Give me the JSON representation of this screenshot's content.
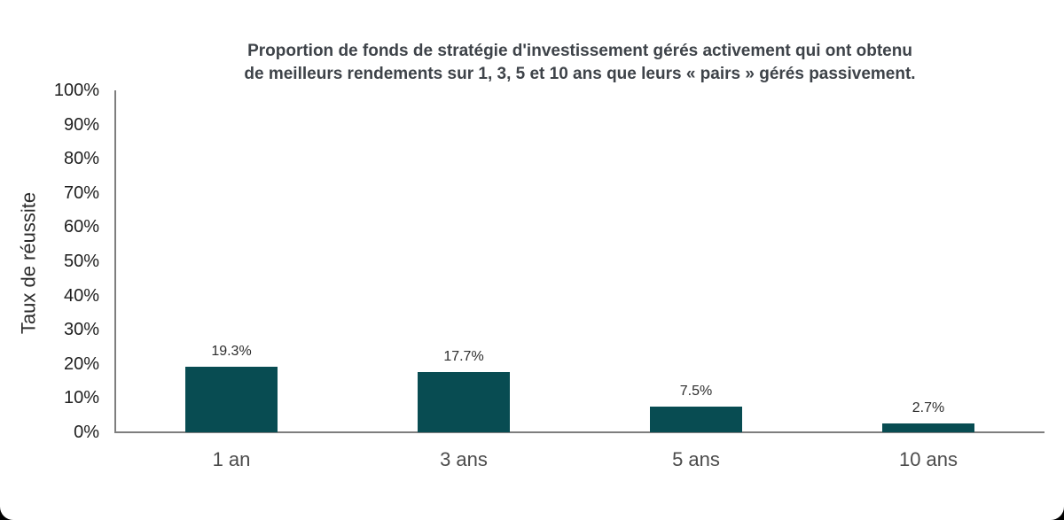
{
  "page": {
    "card_background": "#ffffff",
    "behind_card_background": "#000000"
  },
  "chart_data": {
    "type": "bar",
    "title": "Proportion de fonds de stratégie d'investissement gérés activement qui ont obtenu de meilleurs rendements sur 1, 3, 5 et 10 ans que leurs « pairs » gérés passivement.",
    "title_lines": [
      "Proportion de fonds de stratégie d'investissement gérés activement qui ont obtenu",
      "de meilleurs rendements sur 1, 3, 5 et 10 ans que leurs « pairs » gérés passivement."
    ],
    "xlabel": "",
    "ylabel": "Taux de réussite",
    "categories": [
      "1 an",
      "3 ans",
      "5 ans",
      "10 ans"
    ],
    "values": [
      19.3,
      17.7,
      7.5,
      2.7
    ],
    "value_labels": [
      "19.3%",
      "17.7%",
      "7.5%",
      "2.7%"
    ],
    "ylim": [
      0,
      100
    ],
    "ytick_step": 10,
    "ytick_labels": [
      "0%",
      "10%",
      "20%",
      "30%",
      "40%",
      "50%",
      "60%",
      "70%",
      "80%",
      "90%",
      "100%"
    ],
    "grid": false,
    "legend_position": "none",
    "bar_color": "#084c52",
    "axis_color": "#7e7e7e",
    "title_color": "#3e4349",
    "tick_label_color": "#1e1e1e",
    "category_label_color": "#4b4b4b",
    "value_label_color": "#2d2d2d"
  }
}
